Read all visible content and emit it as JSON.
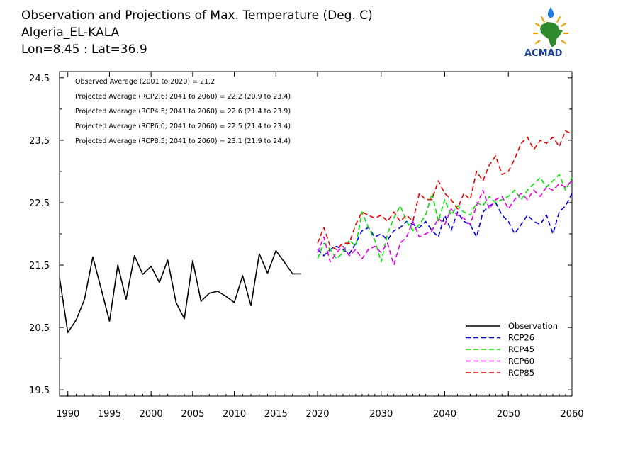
{
  "header": {
    "title": "Observation and Projections of Max. Temperature (Deg. C)",
    "station": "Algeria_EL-KALA",
    "coords": "Lon=8.45 : Lat=36.9"
  },
  "logo": {
    "text": "ACMAD"
  },
  "colors": {
    "Observation": "#000000",
    "RCP26": "#0000dd",
    "RCP45": "#00e600",
    "RCP60": "#e600e6",
    "RCP85": "#e60000"
  },
  "chart_data": {
    "type": "line",
    "title": "Observation and Projections of Max. Temperature (Deg. C)",
    "xlabel": "",
    "ylabel": "",
    "xlim": [
      1989,
      2060
    ],
    "ylim": [
      19.4,
      24.6
    ],
    "x_tick_labels": [
      "1990",
      "1995",
      "2000",
      "2005",
      "2010",
      "2015",
      "2020",
      "2030",
      "2040",
      "2050",
      "2060"
    ],
    "y_tick_labels": [
      "19.5",
      "20.5",
      "21.5",
      "22.5",
      "23.5",
      "24.5"
    ],
    "annotations": [
      "Observed Average (2001 to 2020) = 21.2",
      "Projected Average (RCP2.6; 2041 to 2060) = 22.2 (20.9 to 23.4)",
      "Projected Average (RCP4.5; 2041 to 2060) = 22.6 (21.4 to 23.9)",
      "Projected Average (RCP6.0; 2041 to 2060) = 22.5 (21.4 to 23.4)",
      "Projected Average (RCP8.5; 2041 to 2060) = 23.1 (21.9 to 24.4)"
    ],
    "legend_position": "bottom-right",
    "series": [
      {
        "name": "Observation",
        "style": "solid",
        "x": [
          1989,
          1990,
          1991,
          1992,
          1993,
          1994,
          1995,
          1996,
          1997,
          1998,
          1999,
          2000,
          2001,
          2002,
          2003,
          2004,
          2005,
          2006,
          2007,
          2008,
          2009,
          2010,
          2011,
          2012,
          2013,
          2014,
          2015,
          2016,
          2017,
          2018,
          2019,
          2020
        ],
        "y": [
          21.3,
          20.42,
          20.62,
          20.95,
          21.63,
          21.12,
          20.6,
          21.5,
          20.95,
          21.65,
          21.35,
          21.48,
          21.22,
          21.58,
          20.9,
          20.64,
          21.57,
          20.92,
          21.05,
          21.08,
          21.0,
          20.9,
          21.33,
          20.85,
          21.68,
          21.37,
          21.73,
          21.55,
          21.36,
          21.36,
          null,
          null
        ]
      },
      {
        "name": "RCP26",
        "style": "dashed",
        "x": [
          2020,
          2021,
          2022,
          2023,
          2024,
          2025,
          2026,
          2027,
          2028,
          2029,
          2030,
          2031,
          2032,
          2033,
          2034,
          2035,
          2036,
          2037,
          2038,
          2039,
          2040,
          2041,
          2042,
          2043,
          2044,
          2045,
          2046,
          2047,
          2048,
          2049,
          2050,
          2051,
          2052,
          2053,
          2054,
          2055,
          2056,
          2057,
          2058,
          2059,
          2060
        ],
        "y": [
          21.75,
          21.65,
          21.75,
          21.8,
          21.75,
          21.68,
          21.85,
          22.05,
          22.1,
          21.95,
          22.0,
          21.9,
          22.05,
          22.1,
          22.2,
          22.15,
          22.1,
          22.2,
          22.05,
          21.95,
          22.3,
          22.05,
          22.35,
          22.2,
          22.15,
          21.95,
          22.35,
          22.45,
          22.5,
          22.3,
          22.2,
          22.0,
          22.15,
          22.3,
          22.2,
          22.15,
          22.3,
          22.0,
          22.35,
          22.45,
          22.65
        ]
      },
      {
        "name": "RCP45",
        "style": "dashed",
        "x": [
          2020,
          2021,
          2022,
          2023,
          2024,
          2025,
          2026,
          2027,
          2028,
          2029,
          2030,
          2031,
          2032,
          2033,
          2034,
          2035,
          2036,
          2037,
          2038,
          2039,
          2040,
          2041,
          2042,
          2043,
          2044,
          2045,
          2046,
          2047,
          2048,
          2049,
          2050,
          2051,
          2052,
          2053,
          2054,
          2055,
          2056,
          2057,
          2058,
          2059,
          2060
        ],
        "y": [
          21.6,
          21.85,
          21.75,
          21.6,
          21.7,
          21.9,
          21.8,
          22.35,
          22.1,
          21.9,
          21.55,
          22.0,
          22.25,
          22.45,
          22.2,
          22.05,
          22.15,
          22.3,
          22.65,
          22.2,
          22.55,
          22.3,
          22.45,
          22.35,
          22.3,
          22.5,
          22.45,
          22.6,
          22.5,
          22.55,
          22.6,
          22.7,
          22.55,
          22.7,
          22.8,
          22.9,
          22.75,
          22.85,
          22.95,
          22.7,
          22.9
        ]
      },
      {
        "name": "RCP60",
        "style": "dashed",
        "x": [
          2020,
          2021,
          2022,
          2023,
          2024,
          2025,
          2026,
          2027,
          2028,
          2029,
          2030,
          2031,
          2032,
          2033,
          2034,
          2035,
          2036,
          2037,
          2038,
          2039,
          2040,
          2041,
          2042,
          2043,
          2044,
          2045,
          2046,
          2047,
          2048,
          2049,
          2050,
          2051,
          2052,
          2053,
          2054,
          2055,
          2056,
          2057,
          2058,
          2059,
          2060
        ],
        "y": [
          21.7,
          21.95,
          21.55,
          21.7,
          21.8,
          21.65,
          21.75,
          21.6,
          21.75,
          21.8,
          21.7,
          21.85,
          21.5,
          21.85,
          21.95,
          22.2,
          21.95,
          22.0,
          22.05,
          22.25,
          22.15,
          22.4,
          22.3,
          22.25,
          22.15,
          22.45,
          22.7,
          22.4,
          22.55,
          22.6,
          22.4,
          22.55,
          22.65,
          22.55,
          22.7,
          22.6,
          22.75,
          22.7,
          22.8,
          22.75,
          22.85
        ]
      },
      {
        "name": "RCP85",
        "style": "dashed",
        "x": [
          2020,
          2021,
          2022,
          2023,
          2024,
          2025,
          2026,
          2027,
          2028,
          2029,
          2030,
          2031,
          2032,
          2033,
          2034,
          2035,
          2036,
          2037,
          2038,
          2039,
          2040,
          2041,
          2042,
          2043,
          2044,
          2045,
          2046,
          2047,
          2048,
          2049,
          2050,
          2051,
          2052,
          2053,
          2054,
          2055,
          2056,
          2057,
          2058,
          2059,
          2060
        ],
        "y": [
          21.85,
          22.1,
          21.8,
          21.75,
          21.85,
          21.85,
          22.15,
          22.35,
          22.3,
          22.25,
          22.3,
          22.2,
          22.35,
          22.2,
          22.3,
          22.2,
          22.65,
          22.55,
          22.55,
          22.85,
          22.65,
          22.55,
          22.4,
          22.65,
          22.55,
          23.0,
          22.85,
          23.1,
          23.25,
          22.95,
          23.0,
          23.2,
          23.45,
          23.55,
          23.35,
          23.5,
          23.45,
          23.55,
          23.4,
          23.65,
          23.6
        ]
      }
    ]
  }
}
